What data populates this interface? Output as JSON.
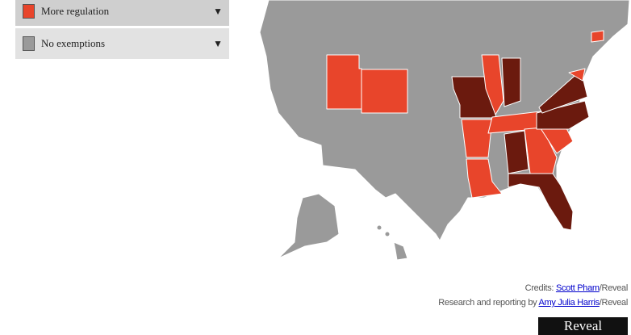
{
  "legend": {
    "items": [
      {
        "label": "More regulation"
      },
      {
        "label": "No exemptions"
      }
    ]
  },
  "credits": {
    "line1": {
      "prefix": "Credits: ",
      "name": "Scott Pham",
      "suffix": "/Reveal"
    },
    "line2": {
      "prefix": "Research and reporting by ",
      "name": "Amy Julia Harris",
      "suffix": "/Reveal"
    }
  },
  "logo": {
    "text": "Reveal"
  }
}
